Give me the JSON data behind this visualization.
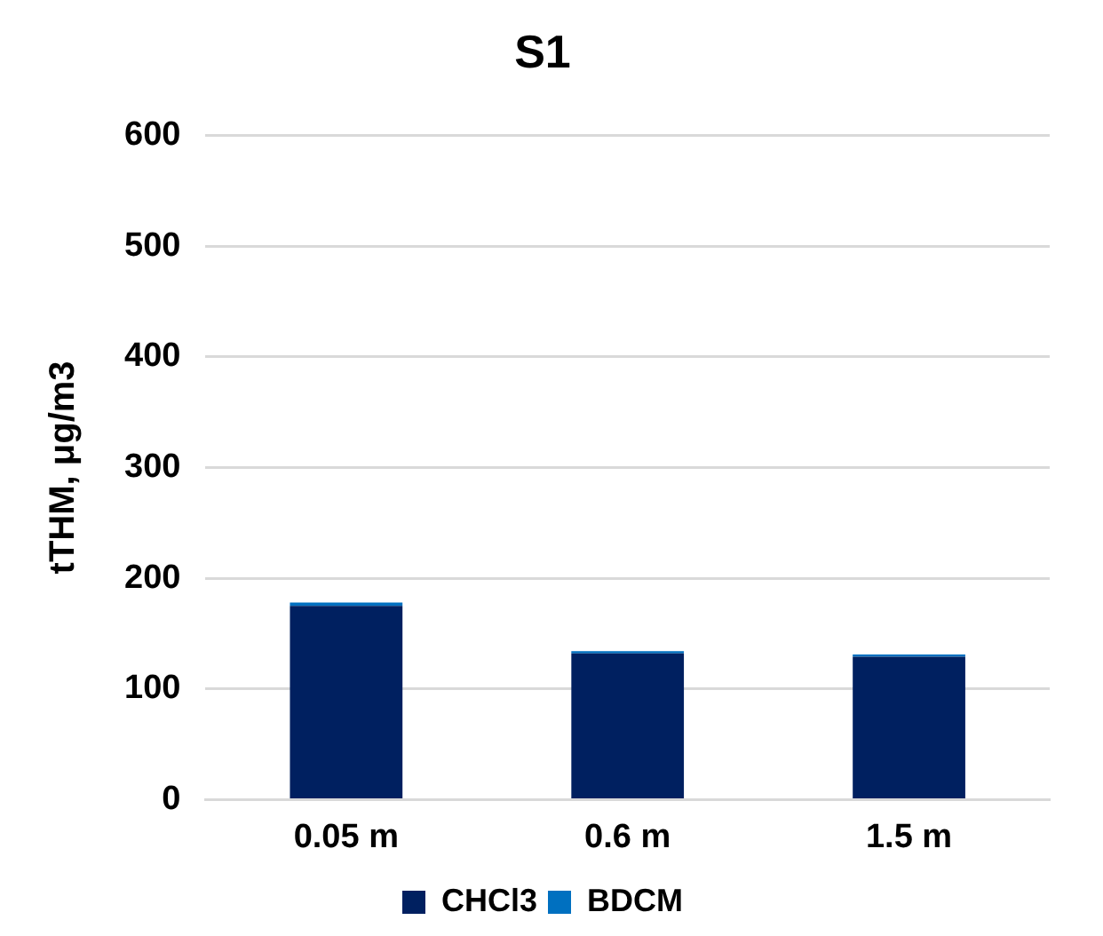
{
  "chart_data": {
    "type": "bar",
    "title": "S1",
    "ylabel": "tTHM, μg/m3",
    "categories": [
      "0.05 m",
      "0.6 m",
      "1.5 m"
    ],
    "series": [
      {
        "name": "CHCl3",
        "color": "#002060",
        "values": [
          175,
          132,
          129
        ]
      },
      {
        "name": "BDCM",
        "color": "#0070c0",
        "values": [
          3,
          2,
          2
        ]
      }
    ],
    "stacked": true,
    "ylim": [
      0,
      600
    ],
    "yticks": [
      0,
      100,
      200,
      300,
      400,
      500,
      600
    ],
    "grid": "y",
    "legend": "bottom"
  }
}
